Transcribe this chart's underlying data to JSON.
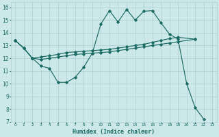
{
  "xlabel": "Humidex (Indice chaleur)",
  "bg_color": "#cce8e8",
  "line_color": "#1a6b63",
  "grid_color": "#aacfcf",
  "xlim": [
    -0.5,
    23.5
  ],
  "ylim": [
    7,
    16.4
  ],
  "xticks": [
    0,
    1,
    2,
    3,
    4,
    5,
    6,
    7,
    8,
    9,
    10,
    11,
    12,
    13,
    14,
    15,
    16,
    17,
    18,
    19,
    20,
    21,
    22,
    23
  ],
  "yticks": [
    7,
    8,
    9,
    10,
    11,
    12,
    13,
    14,
    15,
    16
  ],
  "line1_x": [
    0,
    1,
    2,
    3,
    4,
    5,
    6,
    7,
    8,
    9,
    10,
    11,
    12,
    13,
    14,
    15,
    16,
    17,
    18,
    19,
    20,
    21,
    22
  ],
  "line1_y": [
    13.4,
    12.8,
    12.0,
    11.4,
    11.2,
    10.1,
    10.1,
    10.5,
    11.3,
    12.4,
    14.7,
    15.75,
    14.85,
    15.85,
    15.0,
    15.7,
    15.75,
    14.8,
    13.9,
    13.5,
    10.0,
    8.1,
    7.2
  ],
  "line2_x": [
    0,
    1,
    2,
    3,
    4,
    5,
    6,
    7,
    8,
    9,
    10,
    11,
    12,
    13,
    14,
    15,
    16,
    17,
    18,
    19,
    21
  ],
  "line2_y": [
    13.4,
    12.8,
    12.0,
    12.1,
    12.2,
    12.3,
    12.45,
    12.5,
    12.55,
    12.6,
    12.65,
    12.7,
    12.8,
    12.9,
    13.0,
    13.1,
    13.25,
    13.4,
    13.55,
    13.65,
    13.5
  ],
  "line3_x": [
    0,
    1,
    2,
    3,
    4,
    5,
    6,
    7,
    8,
    9,
    10,
    11,
    12,
    13,
    14,
    15,
    16,
    17,
    18,
    19,
    21
  ],
  "line3_y": [
    13.4,
    12.8,
    12.0,
    11.9,
    12.0,
    12.1,
    12.2,
    12.3,
    12.35,
    12.4,
    12.45,
    12.5,
    12.6,
    12.7,
    12.8,
    12.9,
    13.0,
    13.1,
    13.2,
    13.3,
    13.5
  ]
}
